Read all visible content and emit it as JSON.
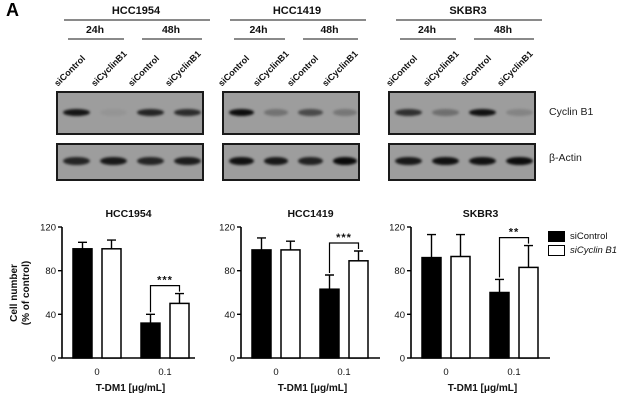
{
  "panel_label": "A",
  "blots": {
    "row_labels": [
      "Cyclin B1",
      "β-Actin"
    ],
    "groups": [
      {
        "cell_line": "HCC1954",
        "timepoints": [
          "24h",
          "48h"
        ],
        "lane_labels": [
          "siControl",
          "siCyclinB1",
          "siControl",
          "siCyclinB1"
        ],
        "bands": {
          "cyclin_b1": [
            0.9,
            0.05,
            0.8,
            0.75
          ],
          "beta_actin": [
            0.8,
            0.88,
            0.8,
            0.85
          ]
        }
      },
      {
        "cell_line": "HCC1419",
        "timepoints": [
          "24h",
          "48h"
        ],
        "lane_labels": [
          "siControl",
          "siCyclinB1",
          "siControl",
          "siCyclinB1"
        ],
        "bands": {
          "cyclin_b1": [
            0.95,
            0.28,
            0.55,
            0.25
          ],
          "beta_actin": [
            0.92,
            0.88,
            0.82,
            0.97
          ]
        }
      },
      {
        "cell_line": "SKBR3",
        "timepoints": [
          "24h",
          "48h"
        ],
        "lane_labels": [
          "siControl",
          "siCyclinB1",
          "siControl",
          "siCyclinB1"
        ],
        "bands": {
          "cyclin_b1": [
            0.72,
            0.3,
            0.92,
            0.16
          ],
          "beta_actin": [
            0.88,
            0.93,
            0.92,
            0.95
          ]
        }
      }
    ]
  },
  "legend": {
    "items": [
      {
        "label": "siControl",
        "fill": "#000000",
        "italic": false
      },
      {
        "label": "siCyclin B1",
        "fill": "#ffffff",
        "italic": true
      }
    ]
  },
  "chart_data": [
    {
      "type": "bar",
      "title": "HCC1954",
      "categories": [
        "0",
        "0.1"
      ],
      "series": [
        {
          "name": "siControl",
          "color": "#000000",
          "values": [
            100,
            32
          ],
          "errors": [
            6,
            8
          ]
        },
        {
          "name": "siCyclin B1",
          "color": "#ffffff",
          "values": [
            100,
            50
          ],
          "errors": [
            8,
            9
          ]
        }
      ],
      "ylabel": "Cell number (% of control)",
      "ylabel_lines": [
        "Cell number",
        "(% of control)"
      ],
      "xlabel": "T-DM1 [μg/mL]",
      "ylim": [
        0,
        120
      ],
      "yticks": [
        0,
        40,
        80,
        120
      ],
      "grid": false,
      "significance": {
        "label": "***",
        "category_index": 1
      }
    },
    {
      "type": "bar",
      "title": "HCC1419",
      "categories": [
        "0",
        "0.1"
      ],
      "series": [
        {
          "name": "siControl",
          "color": "#000000",
          "values": [
            99,
            63
          ],
          "errors": [
            11,
            13
          ]
        },
        {
          "name": "siCyclin B1",
          "color": "#ffffff",
          "values": [
            99,
            89
          ],
          "errors": [
            8,
            9
          ]
        }
      ],
      "xlabel": "T-DM1 [μg/mL]",
      "ylim": [
        0,
        120
      ],
      "yticks": [
        0,
        40,
        80,
        120
      ],
      "grid": false,
      "significance": {
        "label": "***",
        "category_index": 1
      }
    },
    {
      "type": "bar",
      "title": "SKBR3",
      "categories": [
        "0",
        "0.1"
      ],
      "series": [
        {
          "name": "siControl",
          "color": "#000000",
          "values": [
            92,
            60
          ],
          "errors": [
            21,
            12
          ]
        },
        {
          "name": "siCyclin B1",
          "color": "#ffffff",
          "values": [
            93,
            83
          ],
          "errors": [
            20,
            20
          ]
        }
      ],
      "xlabel": "T-DM1 [μg/mL]",
      "ylim": [
        0,
        120
      ],
      "yticks": [
        0,
        40,
        80,
        120
      ],
      "grid": false,
      "significance": {
        "label": "**",
        "category_index": 1
      }
    }
  ]
}
